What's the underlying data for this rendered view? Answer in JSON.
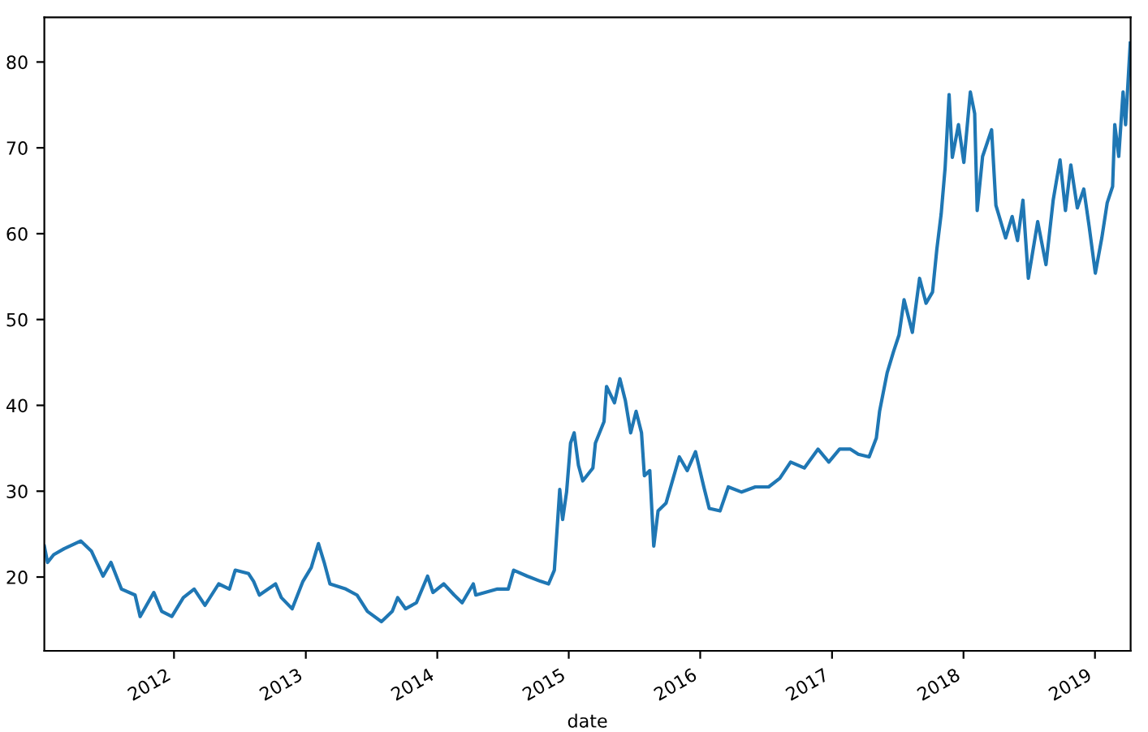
{
  "chart_data": {
    "type": "line",
    "xlabel": "date",
    "xlim": [
      "2011-01-06",
      "2019-04-10"
    ],
    "ylim": [
      11.4,
      85.2
    ],
    "xticks": [
      {
        "value": "2012-01-01",
        "label": "2012"
      },
      {
        "value": "2013-01-01",
        "label": "2013"
      },
      {
        "value": "2014-01-01",
        "label": "2014"
      },
      {
        "value": "2015-01-01",
        "label": "2015"
      },
      {
        "value": "2016-01-01",
        "label": "2016"
      },
      {
        "value": "2017-01-01",
        "label": "2017"
      },
      {
        "value": "2018-01-01",
        "label": "2018"
      },
      {
        "value": "2019-01-01",
        "label": "2019"
      }
    ],
    "yticks": [
      20,
      30,
      40,
      50,
      60,
      70,
      80
    ],
    "grid": false,
    "series": [
      {
        "color": "#1f77b4",
        "x": [
          "2011-01-06",
          "2011-01-15",
          "2011-02-01",
          "2011-03-02",
          "2011-04-17",
          "2011-05-17",
          "2011-06-18",
          "2011-07-10",
          "2011-08-08",
          "2011-09-15",
          "2011-09-29",
          "2011-11-06",
          "2011-11-28",
          "2011-12-26",
          "2012-01-27",
          "2012-02-26",
          "2012-03-27",
          "2012-05-04",
          "2012-06-03",
          "2012-06-19",
          "2012-07-26",
          "2012-08-09",
          "2012-08-25",
          "2012-10-09",
          "2012-10-25",
          "2012-11-24",
          "2012-12-24",
          "2013-01-16",
          "2013-02-05",
          "2013-02-21",
          "2013-03-09",
          "2013-04-22",
          "2013-05-23",
          "2013-06-21",
          "2013-07-30",
          "2013-08-29",
          "2013-09-13",
          "2013-10-05",
          "2013-11-04",
          "2013-12-05",
          "2013-12-20",
          "2014-01-19",
          "2014-02-17",
          "2014-03-11",
          "2014-04-11",
          "2014-04-18",
          "2014-06-17",
          "2014-07-17",
          "2014-08-01",
          "2014-09-08",
          "2014-10-15",
          "2014-11-06",
          "2014-11-22",
          "2014-12-07",
          "2014-12-15",
          "2014-12-26",
          "2015-01-06",
          "2015-01-16",
          "2015-01-28",
          "2015-02-09",
          "2015-03-09",
          "2015-03-16",
          "2015-04-09",
          "2015-04-16",
          "2015-05-08",
          "2015-05-23",
          "2015-06-07",
          "2015-06-22",
          "2015-07-07",
          "2015-07-22",
          "2015-07-30",
          "2015-08-14",
          "2015-08-25",
          "2015-09-06",
          "2015-09-28",
          "2015-11-04",
          "2015-11-26",
          "2015-12-19",
          "2016-01-11",
          "2016-01-26",
          "2016-02-25",
          "2016-03-19",
          "2016-04-25",
          "2016-06-02",
          "2016-07-09",
          "2016-08-09",
          "2016-09-08",
          "2016-10-16",
          "2016-11-23",
          "2016-12-23",
          "2017-01-22",
          "2017-02-21",
          "2017-03-15",
          "2017-04-14",
          "2017-05-04",
          "2017-05-13",
          "2017-06-03",
          "2017-06-21",
          "2017-07-06",
          "2017-07-20",
          "2017-08-12",
          "2017-09-01",
          "2017-09-19",
          "2017-10-07",
          "2017-10-19",
          "2017-10-31",
          "2017-11-11",
          "2017-11-22",
          "2017-12-01",
          "2017-12-18",
          "2018-01-02",
          "2018-01-20",
          "2018-02-01",
          "2018-02-08",
          "2018-02-23",
          "2018-03-20",
          "2018-04-01",
          "2018-04-28",
          "2018-05-16",
          "2018-05-31",
          "2018-06-15",
          "2018-06-30",
          "2018-07-26",
          "2018-08-18",
          "2018-09-07",
          "2018-09-26",
          "2018-10-11",
          "2018-10-26",
          "2018-11-13",
          "2018-12-01",
          "2018-12-16",
          "2019-01-02",
          "2019-01-20",
          "2019-02-04",
          "2019-02-19",
          "2019-02-25",
          "2019-03-08",
          "2019-03-20",
          "2019-03-27",
          "2019-04-09"
        ],
        "values": [
          23.6,
          21.7,
          22.6,
          23.3,
          24.2,
          23,
          20.1,
          21.7,
          18.6,
          17.9,
          15.4,
          18.2,
          16,
          15.4,
          17.6,
          18.6,
          16.7,
          19.2,
          18.6,
          20.8,
          20.4,
          19.5,
          17.9,
          19.2,
          17.6,
          16.3,
          19.5,
          21.1,
          23.9,
          21.7,
          19.2,
          18.6,
          17.9,
          16,
          14.8,
          16,
          17.6,
          16.3,
          17,
          20.1,
          18.2,
          19.2,
          17.9,
          17,
          19.2,
          17.9,
          18.6,
          18.6,
          20.8,
          20.1,
          19.5,
          19.2,
          20.8,
          30.2,
          26.7,
          29.9,
          35.6,
          36.8,
          33,
          31.2,
          32.7,
          35.6,
          38.1,
          42.2,
          40.3,
          43.1,
          40.6,
          36.8,
          39.3,
          36.8,
          31.8,
          32.4,
          23.6,
          27.7,
          28.6,
          34,
          32.4,
          34.6,
          30.5,
          28,
          27.7,
          30.5,
          29.9,
          30.5,
          30.5,
          31.5,
          33.4,
          32.7,
          34.9,
          33.4,
          34.9,
          34.9,
          34.3,
          34,
          36.2,
          39.3,
          43.8,
          46.3,
          48.2,
          52.3,
          48.5,
          54.8,
          51.9,
          53.2,
          58.2,
          62.3,
          67.7,
          76.2,
          68.9,
          72.7,
          68.3,
          76.5,
          74,
          62.7,
          69,
          72.1,
          63.3,
          59.5,
          62,
          59.2,
          63.9,
          54.8,
          61.4,
          56.4,
          63.9,
          68.6,
          62.7,
          68,
          63,
          65.2,
          60.8,
          55.4,
          59.5,
          63.6,
          65.5,
          72.7,
          69,
          76.5,
          72.7,
          82.2
        ]
      }
    ]
  }
}
